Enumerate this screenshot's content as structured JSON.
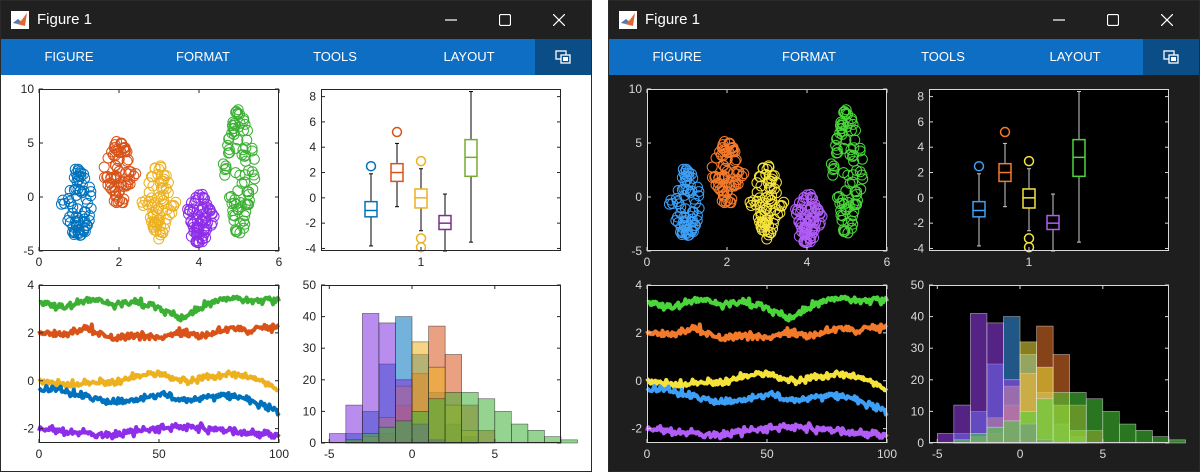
{
  "windows": [
    {
      "id": "light",
      "title": "Figure 1",
      "theme": "light"
    },
    {
      "id": "dark",
      "title": "Figure 1",
      "theme": "dark"
    }
  ],
  "toolstrip": {
    "tabs": [
      "FIGURE",
      "FORMAT",
      "TOOLS",
      "LAYOUT"
    ],
    "undock_icon": "undock-icon"
  },
  "titlebar_icons": [
    "minimize-icon",
    "maximize-icon",
    "close-icon"
  ],
  "colors": {
    "titlebar": "#202020",
    "ribbon": "#0e6ec4",
    "undock_bg": "#0b4d86",
    "light_series": [
      "#0072bd",
      "#d95319",
      "#edb120",
      "#7e2f8e",
      "#77ac30"
    ],
    "dark_series": [
      "#0072bd",
      "#d95319",
      "#edb120",
      "#7e2f8e",
      "#77ac30"
    ],
    "scatter_light": [
      "#0072bd",
      "#d95319",
      "#edb120",
      "#8e2ee8",
      "#3cb034"
    ],
    "scatter_dark": [
      "#3d9ff5",
      "#f47a2b",
      "#f5e33c",
      "#b05cf5",
      "#4ad63a"
    ]
  },
  "chart_data": [
    {
      "type": "scatter",
      "x_ticks": [
        "0",
        "2",
        "4",
        "6"
      ],
      "y_ticks": [
        "-5",
        "0",
        "5",
        "10"
      ],
      "xlim": [
        0,
        6
      ],
      "ylim": [
        -5,
        10
      ],
      "groups": [
        {
          "x_center": 1,
          "y_mean": -0.5,
          "y_min": -4,
          "y_max": 2.6
        },
        {
          "x_center": 2,
          "y_mean": 2,
          "y_min": -0.7,
          "y_max": 5.2
        },
        {
          "x_center": 3,
          "y_mean": -0.1,
          "y_min": -4,
          "y_max": 2.9
        },
        {
          "x_center": 4,
          "y_mean": -1.8,
          "y_min": -4.3,
          "y_max": 0.3
        },
        {
          "x_center": 5,
          "y_mean": 3,
          "y_min": -3.5,
          "y_max": 8.5
        }
      ]
    },
    {
      "type": "box",
      "x_ticks": [
        "1"
      ],
      "y_ticks": [
        "-4",
        "-2",
        "0",
        "2",
        "4",
        "6",
        "8"
      ],
      "ylim": [
        -4.2,
        8.6
      ],
      "boxes": [
        {
          "whisker_low": -3.8,
          "q1": -1.5,
          "median": -1,
          "q3": -0.3,
          "whisker_high": 1.9,
          "outliers": [
            2.5
          ]
        },
        {
          "whisker_low": -0.7,
          "q1": 1.3,
          "median": 2,
          "q3": 2.7,
          "whisker_high": 4.3,
          "outliers": [
            5.2
          ]
        },
        {
          "whisker_low": -2.6,
          "q1": -0.8,
          "median": 0,
          "q3": 0.7,
          "whisker_high": 2.3,
          "outliers": [
            2.9,
            -3.2,
            -3.9
          ]
        },
        {
          "whisker_low": -4.2,
          "q1": -2.5,
          "median": -2,
          "q3": -1.4,
          "whisker_high": 0.3,
          "outliers": []
        },
        {
          "whisker_low": -3.5,
          "q1": 1.7,
          "median": 3.2,
          "q3": 4.6,
          "whisker_high": 8.4,
          "outliers": []
        }
      ]
    },
    {
      "type": "line",
      "x_ticks": [
        "0",
        "50",
        "100"
      ],
      "y_ticks": [
        "-2",
        "0",
        "2",
        "4"
      ],
      "xlim": [
        0,
        100
      ],
      "ylim": [
        -2.6,
        4
      ],
      "series": [
        {
          "anchors": [
            [
              0,
              3.3
            ],
            [
              10,
              3.0
            ],
            [
              20,
              3.4
            ],
            [
              30,
              3.2
            ],
            [
              40,
              3.3
            ],
            [
              50,
              3.0
            ],
            [
              60,
              2.6
            ],
            [
              70,
              3.2
            ],
            [
              80,
              3.5
            ],
            [
              90,
              3.3
            ],
            [
              100,
              3.4
            ]
          ]
        },
        {
          "anchors": [
            [
              0,
              2.0
            ],
            [
              10,
              1.9
            ],
            [
              20,
              2.2
            ],
            [
              30,
              1.8
            ],
            [
              40,
              1.9
            ],
            [
              50,
              1.8
            ],
            [
              60,
              2.0
            ],
            [
              70,
              1.9
            ],
            [
              80,
              2.2
            ],
            [
              90,
              2.1
            ],
            [
              100,
              2.3
            ]
          ]
        },
        {
          "anchors": [
            [
              0,
              0.0
            ],
            [
              10,
              -0.2
            ],
            [
              20,
              -0.1
            ],
            [
              30,
              -0.1
            ],
            [
              40,
              0.2
            ],
            [
              50,
              0.3
            ],
            [
              60,
              0.0
            ],
            [
              70,
              0.1
            ],
            [
              80,
              0.3
            ],
            [
              90,
              0.1
            ],
            [
              100,
              -0.4
            ]
          ]
        },
        {
          "anchors": [
            [
              0,
              -0.3
            ],
            [
              10,
              -0.4
            ],
            [
              20,
              -0.7
            ],
            [
              30,
              -0.9
            ],
            [
              40,
              -0.8
            ],
            [
              50,
              -0.6
            ],
            [
              60,
              -0.8
            ],
            [
              70,
              -0.7
            ],
            [
              80,
              -0.6
            ],
            [
              90,
              -0.9
            ],
            [
              100,
              -1.3
            ]
          ]
        },
        {
          "anchors": [
            [
              0,
              -2.0
            ],
            [
              10,
              -2.1
            ],
            [
              20,
              -2.2
            ],
            [
              30,
              -2.3
            ],
            [
              40,
              -2.1
            ],
            [
              50,
              -2.0
            ],
            [
              60,
              -1.9
            ],
            [
              70,
              -2.0
            ],
            [
              80,
              -2.1
            ],
            [
              90,
              -2.2
            ],
            [
              100,
              -2.3
            ]
          ]
        }
      ]
    },
    {
      "type": "histogram",
      "x_ticks": [
        "-5",
        "0",
        "5"
      ],
      "y_ticks": [
        "0",
        "10",
        "20",
        "30",
        "40",
        "50"
      ],
      "xlim": [
        -5.5,
        9
      ],
      "ylim": [
        0,
        50
      ],
      "bin_width": 1,
      "series": [
        {
          "start": -4,
          "counts": [
            3,
            10,
            25,
            40,
            28,
            16,
            6,
            2
          ]
        },
        {
          "start": -2,
          "counts": [
            3,
            12,
            22,
            37,
            28,
            12,
            4
          ]
        },
        {
          "start": -3,
          "counts": [
            2,
            8,
            18,
            32,
            24,
            12,
            4
          ]
        },
        {
          "start": -5,
          "counts": [
            3,
            12,
            41,
            38,
            20,
            6,
            1
          ]
        },
        {
          "start": -4,
          "counts": [
            1,
            3,
            5,
            7,
            10,
            14,
            16,
            16,
            14,
            10,
            6,
            4,
            2,
            1
          ]
        }
      ]
    }
  ]
}
